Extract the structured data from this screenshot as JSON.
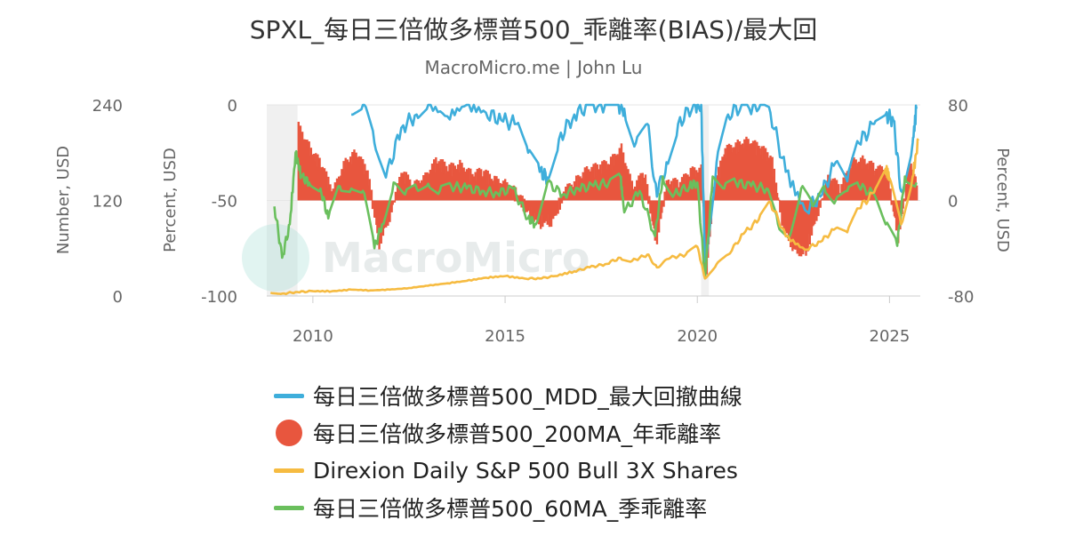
{
  "chart_data": {
    "type": "line",
    "title": "SPXL_每日三倍做多標普500_乖離率(BIAS)/最大回",
    "subtitle": "MacroMicro.me | John Lu",
    "watermark": "MacroMicro",
    "x_ticks": [
      "2010",
      "2015",
      "2020",
      "2025"
    ],
    "xlim": [
      2008.8,
      2025.8
    ],
    "axes": {
      "left_outer": {
        "label": "Number, USD",
        "ylim": [
          0,
          240
        ],
        "ticks": [
          "0",
          "120",
          "240"
        ]
      },
      "left_inner": {
        "label": "Percent, USD",
        "ylim": [
          -100,
          0
        ],
        "ticks": [
          "-100",
          "-50",
          "0"
        ]
      },
      "right": {
        "label": "Percent, USD",
        "ylim": [
          -80,
          80
        ],
        "ticks": [
          "-80",
          "0",
          "80"
        ]
      }
    },
    "shaded_periods": [
      [
        2008.8,
        2009.6
      ],
      [
        2020.1,
        2020.3
      ]
    ],
    "series": [
      {
        "name": "每日三倍做多標普500_MDD_最大回撤曲線",
        "type": "line",
        "axis": "left_inner",
        "color": "#3eaedb",
        "x": [
          2011.0,
          2011.3,
          2011.6,
          2011.9,
          2012.3,
          2012.7,
          2013.0,
          2013.5,
          2014.0,
          2014.5,
          2014.9,
          2015.3,
          2015.6,
          2015.9,
          2016.1,
          2016.4,
          2016.8,
          2017.2,
          2017.6,
          2017.9,
          2018.1,
          2018.4,
          2018.7,
          2018.95,
          2019.2,
          2019.5,
          2019.9,
          2020.1,
          2020.2,
          2020.5,
          2020.8,
          2021.2,
          2021.6,
          2021.9,
          2022.3,
          2022.8,
          2023.2,
          2023.6,
          2023.9,
          2024.2,
          2024.6,
          2024.9,
          2025.1,
          2025.3,
          2025.6,
          2025.7
        ],
        "values": [
          -5,
          0,
          -20,
          -38,
          -12,
          -5,
          0,
          -6,
          0,
          -4,
          -8,
          -10,
          -25,
          -35,
          -38,
          -18,
          -5,
          0,
          0,
          0,
          -2,
          -20,
          -10,
          -48,
          -30,
          -10,
          0,
          0,
          -82,
          -30,
          -5,
          0,
          -2,
          -4,
          -35,
          -55,
          -48,
          -30,
          -40,
          -20,
          -10,
          -5,
          -8,
          -45,
          -20,
          -2
        ]
      },
      {
        "name": "每日三倍做多標普500_200MA_年乖離率",
        "type": "bar",
        "axis": "right",
        "color": "#e8563e",
        "x": [
          2009.6,
          2009.9,
          2010.2,
          2010.5,
          2010.8,
          2011.1,
          2011.4,
          2011.7,
          2012.0,
          2012.3,
          2012.6,
          2012.9,
          2013.2,
          2013.5,
          2013.8,
          2014.1,
          2014.4,
          2014.7,
          2015.0,
          2015.3,
          2015.6,
          2015.9,
          2016.2,
          2016.5,
          2016.8,
          2017.1,
          2017.4,
          2017.7,
          2018.0,
          2018.3,
          2018.6,
          2018.9,
          2019.2,
          2019.5,
          2019.8,
          2020.1,
          2020.2,
          2020.4,
          2020.7,
          2021.0,
          2021.3,
          2021.6,
          2021.9,
          2022.2,
          2022.5,
          2022.8,
          2023.1,
          2023.4,
          2023.7,
          2024.0,
          2024.3,
          2024.6,
          2024.9,
          2025.2,
          2025.5,
          2025.7
        ],
        "values": [
          60,
          42,
          28,
          5,
          30,
          38,
          22,
          -35,
          -10,
          22,
          10,
          18,
          32,
          25,
          28,
          20,
          22,
          15,
          12,
          4,
          -10,
          -18,
          -16,
          5,
          14,
          24,
          26,
          30,
          42,
          8,
          22,
          -35,
          15,
          12,
          22,
          25,
          -62,
          10,
          40,
          45,
          48,
          42,
          35,
          -20,
          -40,
          -42,
          -10,
          18,
          8,
          30,
          32,
          25,
          22,
          -30,
          28,
          10
        ]
      },
      {
        "name": "Direxion Daily S&P 500 Bull 3X Shares",
        "type": "line",
        "axis": "left_outer",
        "color": "#f6bb41",
        "x": [
          2008.9,
          2009.2,
          2009.6,
          2010.0,
          2010.5,
          2011.0,
          2011.5,
          2012.0,
          2012.5,
          2013.0,
          2013.5,
          2014.0,
          2014.5,
          2015.0,
          2015.5,
          2015.9,
          2016.3,
          2016.8,
          2017.2,
          2017.6,
          2018.0,
          2018.3,
          2018.7,
          2018.95,
          2019.3,
          2019.7,
          2020.0,
          2020.2,
          2020.5,
          2020.8,
          2021.2,
          2021.6,
          2021.9,
          2022.3,
          2022.8,
          2023.2,
          2023.6,
          2023.9,
          2024.2,
          2024.6,
          2024.9,
          2025.0,
          2025.3,
          2025.6,
          2025.75
        ],
        "values": [
          4,
          3,
          5,
          6,
          6,
          8,
          7,
          8,
          10,
          13,
          16,
          19,
          23,
          25,
          22,
          22,
          25,
          31,
          36,
          40,
          48,
          44,
          52,
          36,
          48,
          52,
          62,
          22,
          40,
          52,
          78,
          96,
          118,
          75,
          58,
          68,
          85,
          80,
          110,
          130,
          160,
          148,
          90,
          150,
          195
        ]
      },
      {
        "name": "每日三倍做多標普500_60MA_季乖離率",
        "type": "line",
        "axis": "right",
        "color": "#6abf5d",
        "x": [
          2009.0,
          2009.2,
          2009.4,
          2009.55,
          2009.7,
          2009.9,
          2010.2,
          2010.4,
          2010.7,
          2011.0,
          2011.3,
          2011.6,
          2011.8,
          2012.1,
          2012.4,
          2012.7,
          2013.0,
          2013.3,
          2013.6,
          2014.0,
          2014.4,
          2014.8,
          2015.2,
          2015.6,
          2015.8,
          2016.1,
          2016.5,
          2016.9,
          2017.3,
          2017.7,
          2018.0,
          2018.1,
          2018.5,
          2018.9,
          2019.1,
          2019.4,
          2019.8,
          2020.0,
          2020.2,
          2020.4,
          2020.7,
          2021.0,
          2021.4,
          2021.8,
          2022.1,
          2022.4,
          2022.7,
          2023.0,
          2023.3,
          2023.6,
          2023.9,
          2024.2,
          2024.6,
          2024.9,
          2025.2,
          2025.4,
          2025.7
        ],
        "values": [
          -5,
          -48,
          -20,
          40,
          20,
          15,
          10,
          -15,
          12,
          10,
          8,
          -40,
          -20,
          15,
          5,
          10,
          14,
          8,
          12,
          10,
          8,
          6,
          10,
          -15,
          -20,
          15,
          5,
          10,
          12,
          15,
          20,
          -10,
          8,
          -30,
          20,
          5,
          12,
          15,
          -65,
          20,
          10,
          15,
          12,
          10,
          -20,
          -30,
          10,
          -5,
          12,
          0,
          8,
          12,
          5,
          -20,
          -38,
          20,
          15
        ]
      }
    ]
  }
}
